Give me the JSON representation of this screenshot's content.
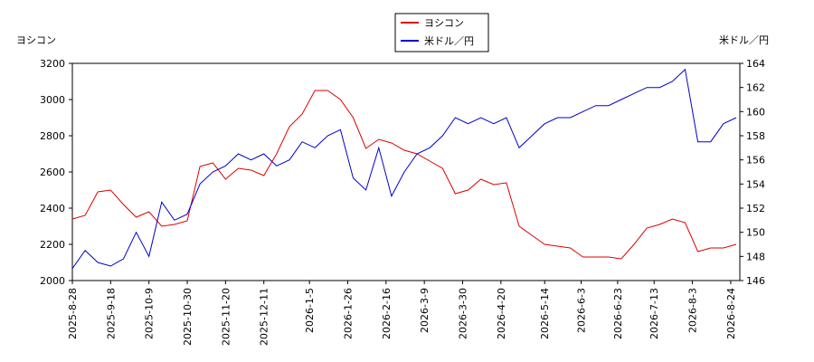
{
  "chart_data": {
    "type": "line",
    "y_label": "ヨシコン",
    "y2_label": "米ドル／円",
    "x": [
      "2025-8-28",
      "2025-9-4",
      "2025-9-11",
      "2025-9-18",
      "2025-9-25",
      "2025-10-2",
      "2025-10-9",
      "2025-10-16",
      "2025-10-23",
      "2025-10-30",
      "2025-11-6",
      "2025-11-13",
      "2025-11-20",
      "2025-11-27",
      "2025-12-4",
      "2025-12-11",
      "2025-12-18",
      "2025-12-25",
      "2026-1-1",
      "2026-1-8",
      "2026-1-15",
      "2026-1-22",
      "2026-1-29",
      "2026-2-5",
      "2026-2-12",
      "2026-2-19",
      "2026-2-26",
      "2026-3-5",
      "2026-3-12",
      "2026-3-19",
      "2026-3-26",
      "2026-4-2",
      "2026-4-9",
      "2026-4-16",
      "2026-4-23",
      "2026-4-30",
      "2026-5-7",
      "2026-5-14",
      "2026-5-21",
      "2026-5-28",
      "2026-6-4",
      "2026-6-11",
      "2026-6-18",
      "2026-6-25",
      "2026-7-2",
      "2026-7-9",
      "2026-7-16",
      "2026-7-23",
      "2026-7-30",
      "2026-8-6",
      "2026-8-13",
      "2026-8-20",
      "2026-8-27"
    ],
    "series": [
      {
        "name": "ヨシコン",
        "color": "#dd0000",
        "axis": "y",
        "values": [
          2340,
          2360,
          2490,
          2500,
          2420,
          2350,
          2380,
          2300,
          2310,
          2330,
          2630,
          2650,
          2560,
          2620,
          2610,
          2580,
          2700,
          2850,
          2920,
          3050,
          3050,
          3000,
          2900,
          2730,
          2780,
          2760,
          2720,
          2700,
          2660,
          2620,
          2480,
          2500,
          2560,
          2530,
          2540,
          2300,
          2250,
          2200,
          2190,
          2180,
          2130,
          2130,
          2130,
          2120,
          2200,
          2290,
          2310,
          2340,
          2320,
          2160,
          2180,
          2180,
          2200
        ]
      },
      {
        "name": "米ドル／円",
        "color": "#0000cc",
        "axis": "y2",
        "values": [
          147.0,
          148.5,
          147.5,
          147.2,
          147.8,
          150.0,
          148.0,
          152.5,
          151.0,
          151.5,
          154.0,
          155.0,
          155.5,
          156.5,
          156.0,
          156.5,
          155.5,
          156.0,
          157.5,
          157.0,
          158.0,
          158.5,
          154.5,
          153.5,
          157.0,
          153.0,
          155.0,
          156.5,
          157.0,
          158.0,
          159.5,
          159.0,
          159.5,
          159.0,
          159.5,
          157.0,
          158.0,
          159.0,
          159.5,
          159.5,
          160.0,
          160.5,
          160.5,
          161.0,
          161.5,
          162.0,
          162.0,
          162.5,
          163.5,
          157.5,
          157.5,
          159.0,
          159.5
        ]
      }
    ],
    "xlim": [
      "2025-8-28",
      "2026-8-29"
    ],
    "xticks": [
      "2025-8-28",
      "2025-9-18",
      "2025-10-9",
      "2025-10-30",
      "2025-11-20",
      "2025-12-11",
      "2026-1-5",
      "2026-1-26",
      "2026-2-16",
      "2026-3-9",
      "2026-3-30",
      "2026-4-20",
      "2026-5-14",
      "2026-6-3",
      "2026-6-23",
      "2026-7-13",
      "2026-8-3",
      "2026-8-24"
    ],
    "ylim": [
      2000,
      3200
    ],
    "yticks": [
      2000,
      2200,
      2400,
      2600,
      2800,
      3000,
      3200
    ],
    "y2lim": [
      146,
      164
    ],
    "y2ticks": [
      146,
      148,
      150,
      152,
      154,
      156,
      158,
      160,
      162,
      164
    ],
    "grid": false
  }
}
